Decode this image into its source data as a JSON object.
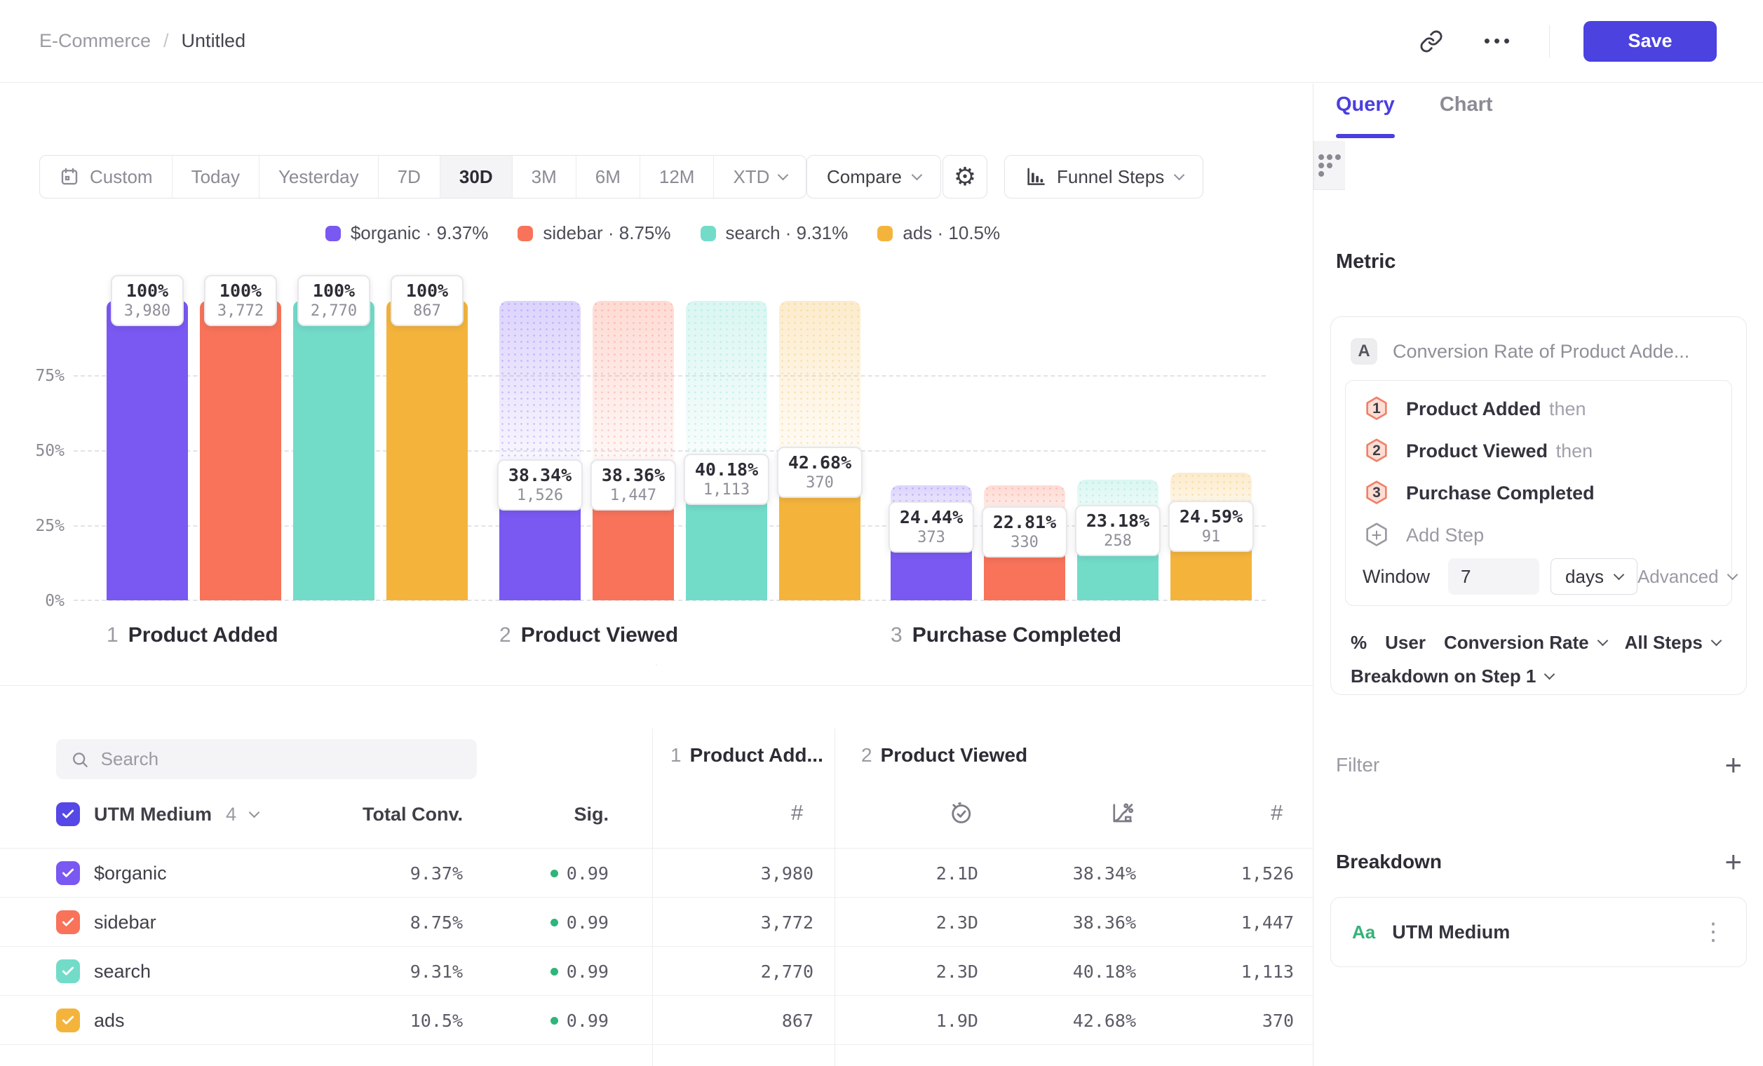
{
  "header": {
    "project": "E-Commerce",
    "sep": "/",
    "title": "Untitled",
    "save": "Save"
  },
  "glyphs": {
    "more": "•••",
    "kebab": "⋮",
    "plus": "+",
    "hash": "#",
    "gear": "⚙"
  },
  "toolbar": {
    "ranges": [
      "Custom",
      "Today",
      "Yesterday",
      "7D",
      "30D",
      "3M",
      "6M",
      "12M",
      "XTD"
    ],
    "selected_index": 4,
    "compare": "Compare",
    "chart_type": "Funnel Steps"
  },
  "legend": [
    {
      "label": "$organic",
      "value": "9.37%",
      "color": "#7a58f2"
    },
    {
      "label": "sidebar",
      "value": "8.75%",
      "color": "#f87359"
    },
    {
      "label": "search",
      "value": "9.31%",
      "color": "#72dcc9"
    },
    {
      "label": "ads",
      "value": "10.5%",
      "color": "#f4b43c"
    }
  ],
  "chart_data": {
    "type": "bar",
    "title": "Funnel Steps",
    "ylim": [
      0,
      100
    ],
    "yticks": [
      "75%",
      "50%",
      "25%",
      "0%"
    ],
    "grid": true,
    "steps": [
      {
        "num": "1",
        "label": "Product Added"
      },
      {
        "num": "2",
        "label": "Product Viewed"
      },
      {
        "num": "3",
        "label": "Purchase Completed"
      }
    ],
    "series": [
      {
        "name": "$organic",
        "color": "#7a58f2",
        "pct": [
          100,
          38.34,
          24.44
        ],
        "pct_labels": [
          "100%",
          "38.34%",
          "24.44%"
        ],
        "counts": [
          3980,
          1526,
          373
        ],
        "count_labels": [
          "3,980",
          "1,526",
          "373"
        ]
      },
      {
        "name": "sidebar",
        "color": "#f87359",
        "pct": [
          100,
          38.36,
          22.81
        ],
        "pct_labels": [
          "100%",
          "38.36%",
          "22.81%"
        ],
        "counts": [
          3772,
          1447,
          330
        ],
        "count_labels": [
          "3,772",
          "1,447",
          "330"
        ]
      },
      {
        "name": "search",
        "color": "#72dcc9",
        "pct": [
          100,
          40.18,
          23.18
        ],
        "pct_labels": [
          "100%",
          "40.18%",
          "23.18%"
        ],
        "counts": [
          2770,
          1113,
          258
        ],
        "count_labels": [
          "2,770",
          "1,113",
          "258"
        ]
      },
      {
        "name": "ads",
        "color": "#f4b43c",
        "pct": [
          100,
          42.68,
          24.59
        ],
        "pct_labels": [
          "100%",
          "42.68%",
          "24.59%"
        ],
        "counts": [
          867,
          370,
          91
        ],
        "count_labels": [
          "867",
          "370",
          "91"
        ]
      }
    ]
  },
  "table": {
    "search_placeholder": "Search",
    "group_col": {
      "label": "UTM Medium",
      "count": "4"
    },
    "cols": {
      "total": "Total Conv.",
      "sig": "Sig."
    },
    "step_groups": [
      {
        "num": "1",
        "label": "Product Add..."
      },
      {
        "num": "2",
        "label": "Product Viewed"
      }
    ],
    "rows": [
      {
        "name": "$organic",
        "color": "#7a58f2",
        "total": "9.37%",
        "sig": "0.99",
        "step1_count": "3,980",
        "avg_time": "2.1D",
        "conv": "38.34%",
        "count": "1,526"
      },
      {
        "name": "sidebar",
        "color": "#f87359",
        "total": "8.75%",
        "sig": "0.99",
        "step1_count": "3,772",
        "avg_time": "2.3D",
        "conv": "38.36%",
        "count": "1,447"
      },
      {
        "name": "search",
        "color": "#72dcc9",
        "total": "9.31%",
        "sig": "0.99",
        "step1_count": "2,770",
        "avg_time": "2.3D",
        "conv": "40.18%",
        "count": "1,113"
      },
      {
        "name": "ads",
        "color": "#f4b43c",
        "total": "10.5%",
        "sig": "0.99",
        "step1_count": "867",
        "avg_time": "1.9D",
        "conv": "42.68%",
        "count": "370"
      }
    ]
  },
  "sidebar": {
    "tabs": {
      "query": "Query",
      "chart": "Chart"
    },
    "metric_heading": "Metric",
    "metric": {
      "badge": "A",
      "title": "Conversion Rate of Product Adde...",
      "steps": [
        {
          "num": "1",
          "label": "Product Added",
          "suffix": "then"
        },
        {
          "num": "2",
          "label": "Product Viewed",
          "suffix": "then"
        },
        {
          "num": "3",
          "label": "Purchase Completed",
          "suffix": ""
        }
      ],
      "add_step": "Add Step",
      "window_label": "Window",
      "window_value": "7",
      "window_unit": "days",
      "advanced": "Advanced",
      "measure": {
        "symbol": "%",
        "entity": "User",
        "metric": "Conversion Rate",
        "scope": "All Steps"
      },
      "breakdown_on": "Breakdown on Step 1"
    },
    "filter": {
      "label": "Filter"
    },
    "breakdown": {
      "label": "Breakdown",
      "item": {
        "type_badge": "Aa",
        "label": "UTM Medium"
      }
    }
  },
  "colors": {
    "accent": "#4b42e0",
    "sig_green": "#2eb57a",
    "active_icon": "#f9623e"
  }
}
